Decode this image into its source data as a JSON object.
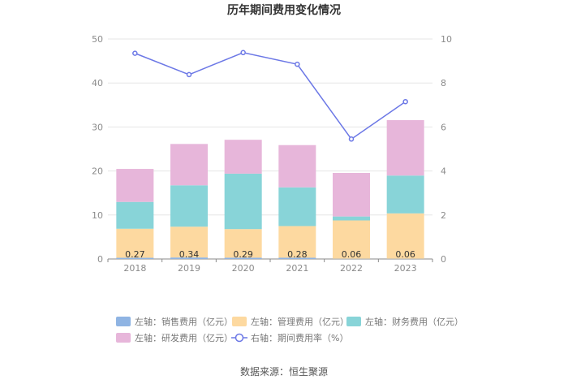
{
  "chart_data": {
    "type": "bar",
    "title": "历年期间费用变化情况",
    "categories": [
      "2018",
      "2019",
      "2020",
      "2021",
      "2022",
      "2023"
    ],
    "series": [
      {
        "name": "左轴：销售费用（亿元）",
        "type": "bar",
        "axis": "left",
        "color": "#8fb4e3",
        "values": [
          0.27,
          0.34,
          0.29,
          0.28,
          0.06,
          0.06
        ],
        "labels": [
          "0.27",
          "0.34",
          "0.29",
          "0.28",
          "0.06",
          "0.06"
        ]
      },
      {
        "name": "左轴：管理费用（亿元）",
        "type": "bar",
        "axis": "left",
        "color": "#fdd9a0",
        "values": [
          6.6,
          7.0,
          6.5,
          7.2,
          8.7,
          10.3
        ]
      },
      {
        "name": "左轴：财务费用（亿元）",
        "type": "bar",
        "axis": "left",
        "color": "#88d4d8",
        "values": [
          6.1,
          9.4,
          12.6,
          8.8,
          0.9,
          8.6
        ]
      },
      {
        "name": "左轴：研发费用（亿元）",
        "type": "bar",
        "axis": "left",
        "color": "#e7b6da",
        "values": [
          7.5,
          9.4,
          7.7,
          9.6,
          9.9,
          12.6
        ]
      },
      {
        "name": "右轴：期间费用率（%）",
        "type": "line",
        "axis": "right",
        "color": "#6c78e6",
        "values": [
          9.35,
          8.38,
          9.38,
          8.85,
          5.45,
          7.15
        ]
      }
    ],
    "y_left": {
      "min": 0,
      "max": 50,
      "ticks": [
        0,
        10,
        20,
        30,
        40,
        50
      ]
    },
    "y_right": {
      "min": 0,
      "max": 10,
      "ticks": [
        0,
        2,
        4,
        6,
        8,
        10
      ]
    },
    "grid": true,
    "legend_position": "bottom"
  },
  "source": "数据来源：恒生聚源"
}
